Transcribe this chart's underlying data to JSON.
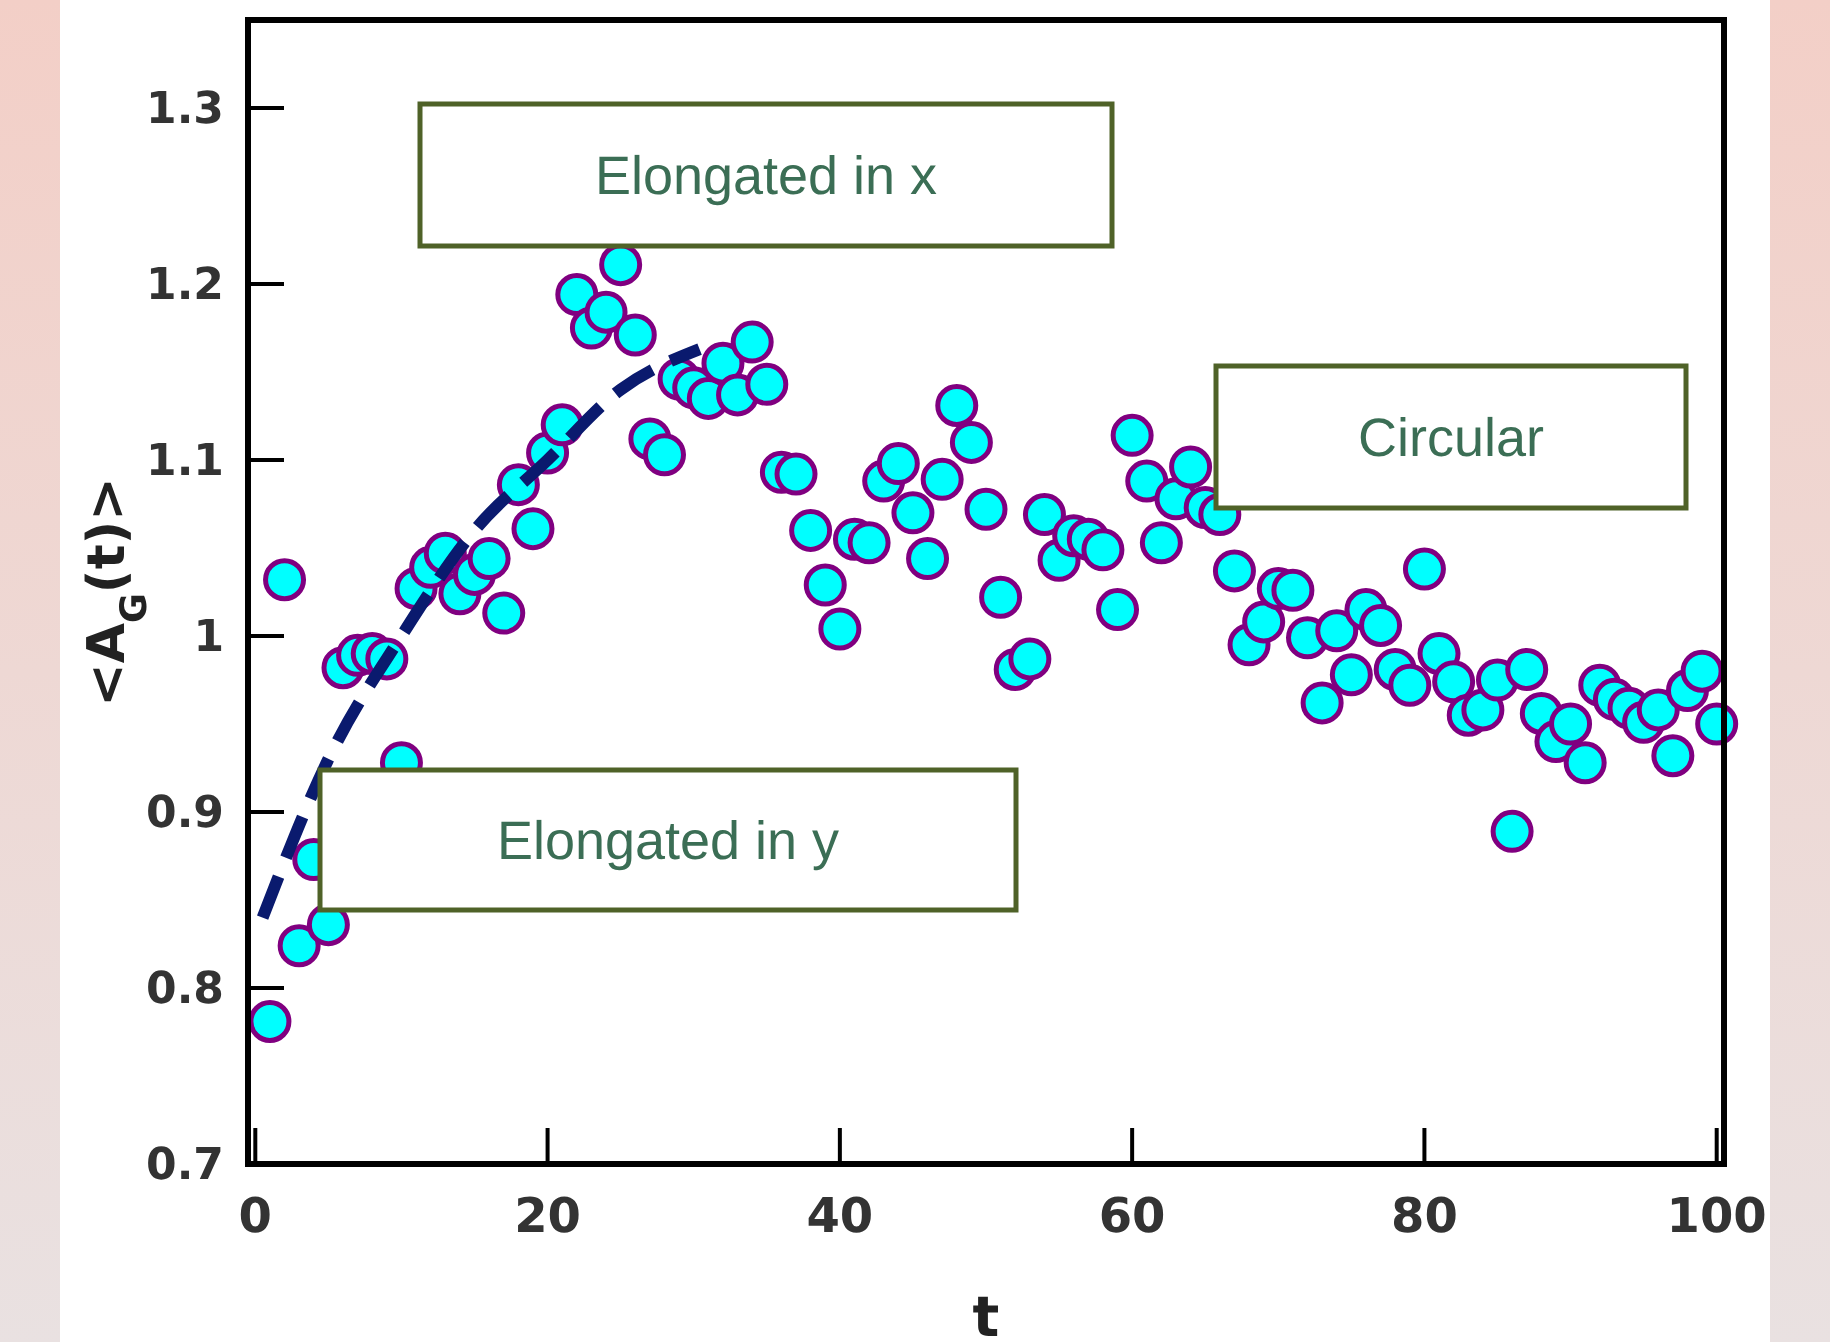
{
  "chart_data": {
    "type": "scatter",
    "xlabel": "t",
    "ylabel": "<A$_{G}$(t)>",
    "xlim": [
      -0.5,
      100.5
    ],
    "ylim": [
      0.7,
      1.35
    ],
    "xticks": [
      0,
      20,
      40,
      60,
      80,
      100
    ],
    "yticks": [
      0.7,
      0.8,
      0.9,
      1,
      1.1,
      1.2,
      1.3
    ],
    "grid": false,
    "annotations": [
      "Elongated in x",
      "Circular",
      "Elongated in y"
    ],
    "series": [
      {
        "marker": "circle",
        "color": "#00ffff",
        "x": [
          1,
          2,
          3,
          4,
          5,
          6,
          7,
          8,
          9,
          10,
          11,
          12,
          13,
          14,
          15,
          16,
          17,
          18,
          19,
          20,
          21,
          22,
          23,
          24,
          25,
          26,
          27,
          28,
          29,
          30,
          31,
          32,
          33,
          34,
          35,
          36,
          37,
          38,
          39,
          40,
          41,
          42,
          43,
          44,
          45,
          46,
          47,
          48,
          49,
          50,
          51,
          52,
          53,
          54,
          55,
          56,
          57,
          58,
          59,
          60,
          61,
          62,
          63,
          64,
          65,
          66,
          67,
          68,
          69,
          70,
          71,
          72,
          73,
          74,
          75,
          76,
          77,
          78,
          79,
          80,
          81,
          82,
          83,
          84,
          85,
          86,
          87,
          88,
          89,
          90,
          91,
          92,
          93,
          94,
          95,
          96,
          97,
          98,
          99,
          100
        ],
        "values": [
          0.781,
          1.032,
          0.824,
          0.873,
          0.836,
          0.982,
          0.989,
          0.99,
          0.987,
          0.928,
          1.027,
          1.039,
          1.047,
          1.024,
          1.035,
          1.044,
          1.013,
          1.086,
          1.061,
          1.104,
          1.12,
          1.194,
          1.175,
          1.184,
          1.211,
          1.171,
          1.112,
          1.103,
          1.146,
          1.141,
          1.135,
          1.155,
          1.137,
          1.167,
          1.143,
          1.093,
          1.092,
          1.06,
          1.029,
          1.004,
          1.055,
          1.053,
          1.088,
          1.098,
          1.07,
          1.044,
          1.089,
          1.131,
          1.11,
          1.072,
          1.022,
          0.981,
          0.987,
          1.069,
          1.043,
          1.057,
          1.055,
          1.049,
          1.015,
          1.114,
          1.088,
          1.053,
          1.078,
          1.096,
          1.073,
          1.069,
          1.037,
          0.995,
          1.008,
          1.027,
          1.026,
          0.999,
          0.962,
          1.003,
          0.978,
          1.015,
          1.006,
          0.981,
          0.972,
          1.038,
          0.99,
          0.974,
          0.955,
          0.958,
          0.975,
          0.889,
          0.981,
          0.956,
          0.94,
          0.95,
          0.928,
          0.972,
          0.964,
          0.959,
          0.951,
          0.958,
          0.932,
          0.969,
          0.98,
          0.95
        ]
      },
      {
        "type": "line",
        "color": "#0a1a6e",
        "line_style": "dashed",
        "x": [
          0.5,
          5,
          10,
          15,
          20,
          25,
          30.4
        ],
        "values": [
          0.84,
          0.93,
          1.0,
          1.06,
          1.1,
          1.14,
          1.163
        ]
      }
    ]
  }
}
